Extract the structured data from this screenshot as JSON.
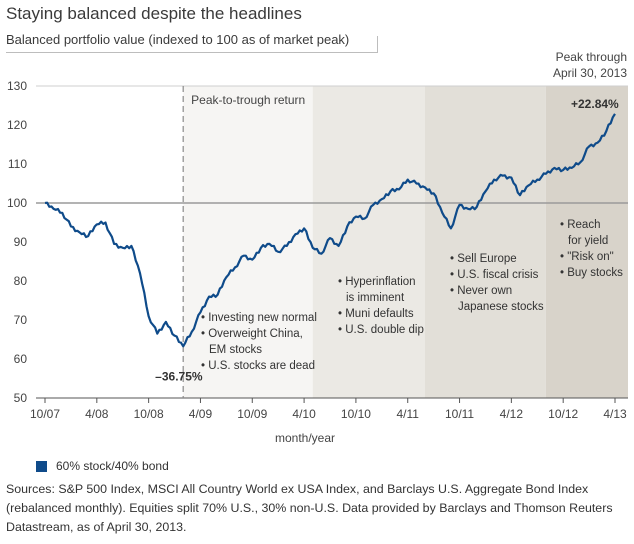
{
  "header": {
    "title": "Staying balanced despite the headlines",
    "subtitle": "Balanced portfolio value (indexed to 100 as of market peak)"
  },
  "colors": {
    "series": "#0f4b8a",
    "band_1": "#f6f5f3",
    "band_2": "#ebe9e4",
    "band_3": "#e2dfd8",
    "band_4": "#d8d3ca"
  },
  "chart_data": {
    "type": "line",
    "xlabel": "month/year",
    "ylabel": "",
    "ylim": [
      50,
      130
    ],
    "yticks": [
      50,
      60,
      70,
      80,
      90,
      100,
      110,
      120,
      130
    ],
    "grid": false,
    "reference_line": 100,
    "x_tick_labels": [
      "10/07",
      "4/08",
      "10/08",
      "4/09",
      "10/09",
      "4/10",
      "10/10",
      "4/11",
      "10/11",
      "4/12",
      "10/12",
      "4/13"
    ],
    "series": [
      {
        "name": "60% stock/40% bond",
        "points": [
          [
            "2007-10",
            100
          ],
          [
            "2007-11",
            98.5
          ],
          [
            "2007-12",
            97.5
          ],
          [
            "2008-01",
            94
          ],
          [
            "2008-02",
            92.5
          ],
          [
            "2008-03",
            91.5
          ],
          [
            "2008-04",
            94.5
          ],
          [
            "2008-05",
            95
          ],
          [
            "2008-06",
            89.5
          ],
          [
            "2008-07",
            88.5
          ],
          [
            "2008-08",
            89
          ],
          [
            "2008-09",
            82
          ],
          [
            "2008-10",
            71
          ],
          [
            "2008-11",
            66.5
          ],
          [
            "2008-12",
            69.5
          ],
          [
            "2009-01",
            66
          ],
          [
            "2009-02",
            63.25
          ],
          [
            "2009-03",
            67
          ],
          [
            "2009-04",
            72
          ],
          [
            "2009-05",
            76
          ],
          [
            "2009-06",
            76.5
          ],
          [
            "2009-07",
            81
          ],
          [
            "2009-08",
            83.5
          ],
          [
            "2009-09",
            86.5
          ],
          [
            "2009-10",
            85.5
          ],
          [
            "2009-11",
            88.5
          ],
          [
            "2009-12",
            89.5
          ],
          [
            "2010-01",
            87.5
          ],
          [
            "2010-02",
            89
          ],
          [
            "2010-03",
            92
          ],
          [
            "2010-04",
            93.5
          ],
          [
            "2010-05",
            88.5
          ],
          [
            "2010-06",
            87
          ],
          [
            "2010-07",
            91
          ],
          [
            "2010-08",
            89
          ],
          [
            "2010-09",
            94
          ],
          [
            "2010-10",
            96.5
          ],
          [
            "2010-11",
            96
          ],
          [
            "2010-12",
            99.5
          ],
          [
            "2011-01",
            101
          ],
          [
            "2011-02",
            103
          ],
          [
            "2011-03",
            103.5
          ],
          [
            "2011-04",
            106
          ],
          [
            "2011-05",
            105
          ],
          [
            "2011-06",
            104
          ],
          [
            "2011-07",
            102.5
          ],
          [
            "2011-08",
            97.5
          ],
          [
            "2011-09",
            93.5
          ],
          [
            "2011-10",
            99.5
          ],
          [
            "2011-11",
            98.5
          ],
          [
            "2011-12",
            99
          ],
          [
            "2012-01",
            103
          ],
          [
            "2012-02",
            106
          ],
          [
            "2012-03",
            107
          ],
          [
            "2012-04",
            106.5
          ],
          [
            "2012-05",
            102
          ],
          [
            "2012-06",
            104.5
          ],
          [
            "2012-07",
            106
          ],
          [
            "2012-08",
            107.5
          ],
          [
            "2012-09",
            109
          ],
          [
            "2012-10",
            108.5
          ],
          [
            "2012-11",
            109
          ],
          [
            "2012-12",
            110.5
          ],
          [
            "2013-01",
            114.5
          ],
          [
            "2013-02",
            115.5
          ],
          [
            "2013-03",
            118.5
          ],
          [
            "2013-04",
            122.84
          ]
        ]
      }
    ],
    "bands": [
      {
        "from": "2009-02",
        "to": "2010-05"
      },
      {
        "from": "2010-05",
        "to": "2011-06"
      },
      {
        "from": "2011-06",
        "to": "2012-08"
      },
      {
        "from": "2012-08",
        "to": "2013-04"
      }
    ],
    "trough_marker": {
      "date": "2009-02",
      "label": "Peak-to-trough return"
    },
    "band_notes": [
      [
        "• Investing new normal",
        "• Overweight China,",
        "EM stocks",
        "• U.S. stocks are dead"
      ],
      [
        "• Hyperinflation",
        "is imminent",
        "• Muni defaults",
        "• U.S. double dip"
      ],
      [
        "• Sell Europe",
        "• U.S. fiscal crisis",
        "• Never own",
        "Japanese stocks"
      ],
      [
        "• Reach",
        "for yield",
        "• \"Risk on\"",
        "• Buy stocks"
      ]
    ],
    "annotations": {
      "trough": "–36.75%",
      "end": "+22.84%",
      "corner_label_line1": "Peak through",
      "corner_label_line2": "April 30, 2013"
    }
  },
  "legend": {
    "label": "60% stock/40% bond"
  },
  "sources": "Sources: S&P 500 Index, MSCI All Country World ex USA Index, and Barclays U.S. Aggregate Bond Index (rebalanced monthly). Equities split 70% U.S., 30% non-U.S. Data provided by Barclays and Thomson Reuters Datastream, as of April 30, 2013."
}
